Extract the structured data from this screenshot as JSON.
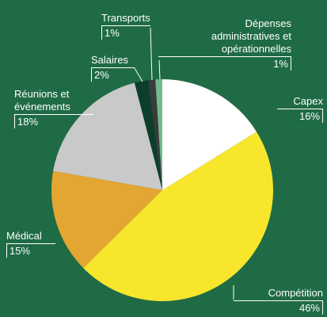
{
  "chart_data": {
    "type": "pie",
    "categories": [
      "Capex",
      "Compétition",
      "Médical",
      "Réunions et événements",
      "Salaires",
      "Transports",
      "Dépenses administratives et opérationnelles"
    ],
    "values": [
      16,
      46,
      15,
      18,
      2,
      1,
      1
    ],
    "value_labels": [
      "16%",
      "46%",
      "15%",
      "18%",
      "2%",
      "1%",
      "1%"
    ],
    "colors": [
      "#ffffff",
      "#f7e62c",
      "#e3a632",
      "#c9c9c9",
      "#0d3e2b",
      "#3b3b3b",
      "#72b98e"
    ]
  }
}
